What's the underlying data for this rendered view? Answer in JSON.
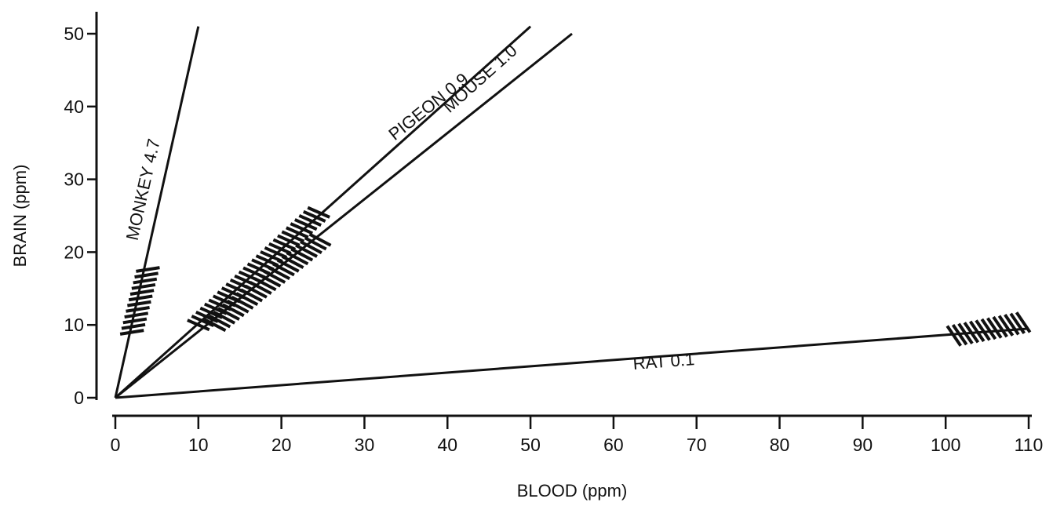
{
  "chart_data": {
    "type": "line",
    "xlabel": "BLOOD (ppm)",
    "ylabel": "BRAIN (ppm)",
    "xlim": [
      0,
      110
    ],
    "ylim": [
      0,
      50
    ],
    "x_ticks": [
      0,
      10,
      20,
      30,
      40,
      50,
      60,
      70,
      80,
      90,
      100,
      110
    ],
    "y_ticks": [
      0,
      10,
      20,
      30,
      40,
      50
    ],
    "grid": false,
    "series": [
      {
        "name": "MONKEY 4.7",
        "x": [
          0,
          10
        ],
        "y": [
          0,
          51
        ],
        "hatched_range": {
          "x": [
            2,
            4
          ],
          "y": [
            9,
            18
          ]
        }
      },
      {
        "name": "MOUSE 1.0",
        "x": [
          0,
          50
        ],
        "y": [
          0,
          51
        ],
        "hatched_range": {
          "x": [
            10,
            25
          ],
          "y": [
            10,
            26
          ]
        }
      },
      {
        "name": "PIGEON 0.9",
        "x": [
          0,
          55
        ],
        "y": [
          0,
          50
        ],
        "hatched_range": {
          "x": [
            12,
            25
          ],
          "y": [
            10,
            22
          ]
        }
      },
      {
        "name": "RAT 0.1",
        "x": [
          0,
          110
        ],
        "y": [
          0,
          9.5
        ],
        "hatched_range": {
          "x": [
            101,
            110
          ],
          "y": [
            8.5,
            10.5
          ]
        }
      }
    ]
  }
}
